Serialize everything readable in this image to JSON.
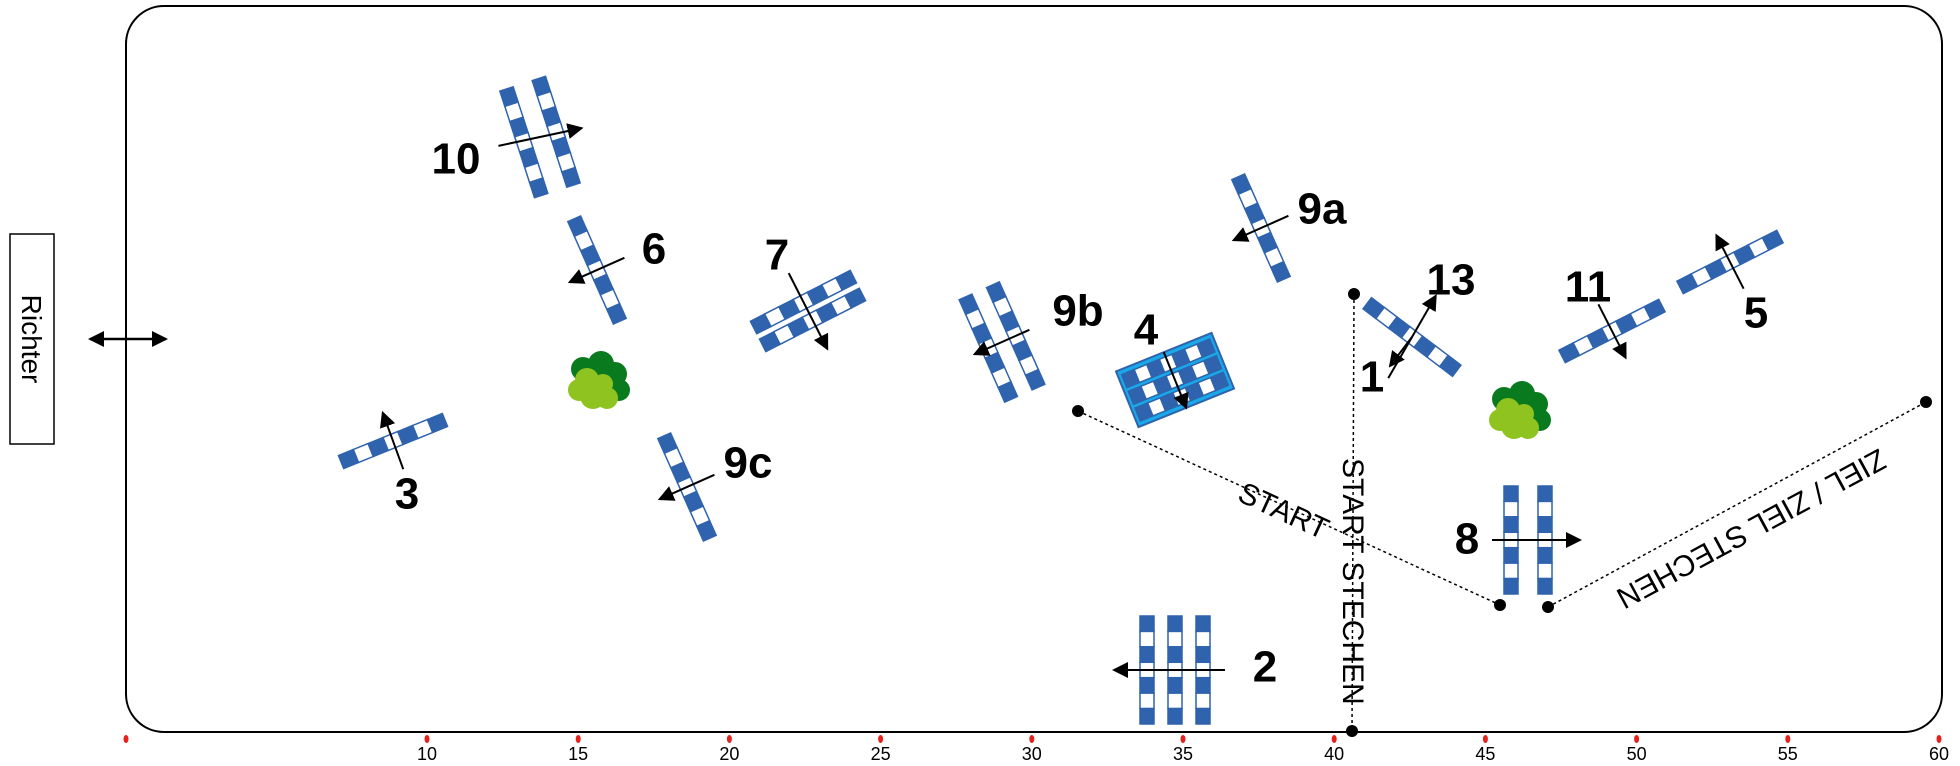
{
  "judge": {
    "label": "Richter"
  },
  "arena": {
    "border_color": "#000000"
  },
  "colors": {
    "rail_blue": "#2f63ad",
    "rail_white": "#ffffff",
    "water_blue": "#19a8e8",
    "bush_dark": "#0a7a1e",
    "bush_light": "#8fc31f",
    "marker_red": "#e8201c"
  },
  "scale": {
    "ticks": [
      "10",
      "15",
      "20",
      "25",
      "30",
      "35",
      "40",
      "45",
      "50",
      "55",
      "60"
    ]
  },
  "lines": {
    "start": "START",
    "start_jumpoff": "START STECHEN",
    "finish": "ZIEL / ZIEL STECHEN"
  },
  "obstacles": [
    {
      "id": "1",
      "label": "1"
    },
    {
      "id": "2",
      "label": "2"
    },
    {
      "id": "3",
      "label": "3"
    },
    {
      "id": "4",
      "label": "4"
    },
    {
      "id": "5",
      "label": "5"
    },
    {
      "id": "6",
      "label": "6"
    },
    {
      "id": "7",
      "label": "7"
    },
    {
      "id": "8",
      "label": "8"
    },
    {
      "id": "9a",
      "label": "9a"
    },
    {
      "id": "9b",
      "label": "9b"
    },
    {
      "id": "9c",
      "label": "9c"
    },
    {
      "id": "10",
      "label": "10"
    },
    {
      "id": "11",
      "label": "11"
    },
    {
      "id": "13",
      "label": "13"
    }
  ],
  "decorations": [
    {
      "id": "bush-left",
      "icon": "bush-icon"
    },
    {
      "id": "bush-right",
      "icon": "bush-icon"
    }
  ]
}
